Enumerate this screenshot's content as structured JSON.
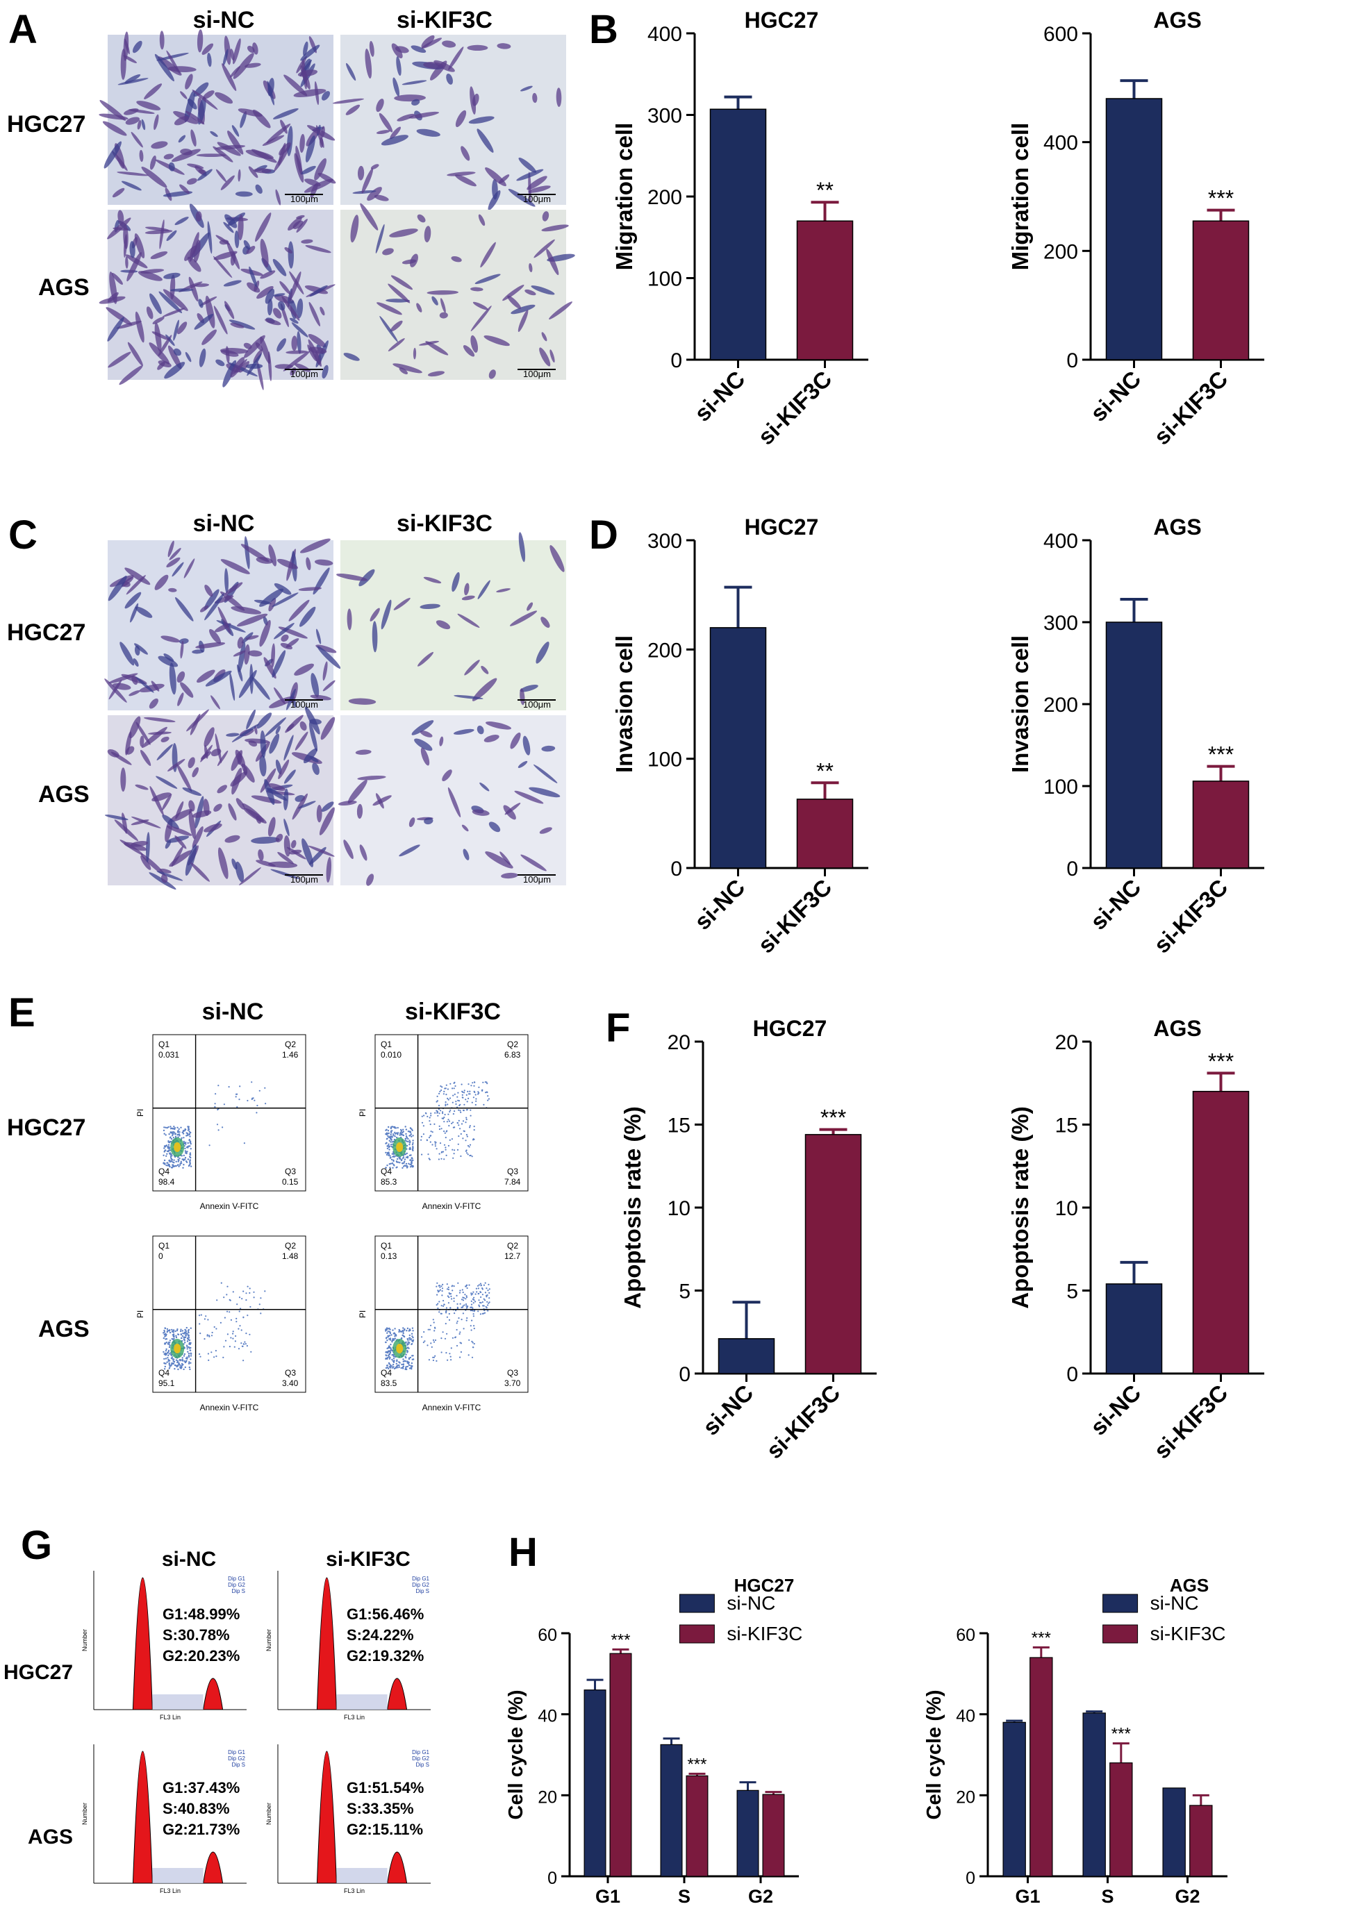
{
  "colors": {
    "si_nc": "#1d2d5e",
    "si_kif3c": "#7b1a3e",
    "axis": "#000000",
    "micro_bg_a": "#e8eaf0",
    "micro_bg_b": "#eef2ee",
    "cell_purple": "#5a3d8a",
    "flow_dot": "#5b7fc4",
    "flow_core": "#e0c020",
    "hist_red": "#e4161b"
  },
  "panel_letters": {
    "A": "A",
    "B": "B",
    "C": "C",
    "D": "D",
    "E": "E",
    "F": "F",
    "G": "G",
    "H": "H"
  },
  "micrographs": {
    "A": {
      "col_labels": [
        "si-NC",
        "si-KIF3C"
      ],
      "row_labels": [
        "HGC27",
        "AGS"
      ],
      "scale_label": "100μm"
    },
    "C": {
      "col_labels": [
        "si-NC",
        "si-KIF3C"
      ],
      "row_labels": [
        "HGC27",
        "AGS"
      ],
      "scale_label": "100μm"
    }
  },
  "flow": {
    "col_labels": [
      "si-NC",
      "si-KIF3C"
    ],
    "row_labels": [
      "HGC27",
      "AGS"
    ],
    "x_label": "Annexin V-FITC",
    "y_label": "PI",
    "plots": [
      {
        "q1": "0.031",
        "q2": "1.46",
        "q3": "0.15",
        "q4": "98.4"
      },
      {
        "q1": "0.010",
        "q2": "6.83",
        "q3": "7.84",
        "q4": "85.3"
      },
      {
        "q1": "0",
        "q2": "1.48",
        "q3": "3.40",
        "q4": "95.1"
      },
      {
        "q1": "0.13",
        "q2": "12.7",
        "q3": "3.70",
        "q4": "83.5"
      }
    ],
    "quadrant_names": [
      "Q1",
      "Q2",
      "Q3",
      "Q4"
    ]
  },
  "histograms": {
    "col_labels": [
      "si-NC",
      "si-KIF3C"
    ],
    "row_labels": [
      "HGC27",
      "AGS"
    ],
    "y_label": "Number",
    "x_label": "FL3 Lin",
    "legend": [
      "Dip G1",
      "Dip G2",
      "Dip S"
    ],
    "plots": [
      {
        "g1": "G1:48.99%",
        "s": "S:30.78%",
        "g2": "G2:20.23%"
      },
      {
        "g1": "G1:56.46%",
        "s": "S:24.22%",
        "g2": "G2:19.32%"
      },
      {
        "g1": "G1:37.43%",
        "s": "S:40.83%",
        "g2": "G2:21.73%"
      },
      {
        "g1": "G1:51.54%",
        "s": "S:33.35%",
        "g2": "G2:15.11%"
      }
    ]
  },
  "chart_data": [
    {
      "id": "B1",
      "type": "bar",
      "title": "HGC27",
      "ylabel": "Migration cell",
      "categories": [
        "si-NC",
        "si-KIF3C"
      ],
      "values": [
        307,
        170
      ],
      "errors": [
        15,
        23
      ],
      "ylim": [
        0,
        400
      ],
      "yticks": [
        0,
        100,
        200,
        300,
        400
      ],
      "annotations": [
        "",
        "**"
      ]
    },
    {
      "id": "B2",
      "type": "bar",
      "title": "AGS",
      "ylabel": "Migration cell",
      "categories": [
        "si-NC",
        "si-KIF3C"
      ],
      "values": [
        480,
        255
      ],
      "errors": [
        33,
        20
      ],
      "ylim": [
        0,
        600
      ],
      "yticks": [
        0,
        200,
        400,
        600
      ],
      "annotations": [
        "",
        "***"
      ]
    },
    {
      "id": "D1",
      "type": "bar",
      "title": "HGC27",
      "ylabel": "Invasion cell",
      "categories": [
        "si-NC",
        "si-KIF3C"
      ],
      "values": [
        220,
        63
      ],
      "errors": [
        37,
        15
      ],
      "ylim": [
        0,
        300
      ],
      "yticks": [
        0,
        100,
        200,
        300
      ],
      "annotations": [
        "",
        "**"
      ]
    },
    {
      "id": "D2",
      "type": "bar",
      "title": "AGS",
      "ylabel": "Invasion cell",
      "categories": [
        "si-NC",
        "si-KIF3C"
      ],
      "values": [
        300,
        106
      ],
      "errors": [
        28,
        18
      ],
      "ylim": [
        0,
        400
      ],
      "yticks": [
        0,
        100,
        200,
        300,
        400
      ],
      "annotations": [
        "",
        "***"
      ]
    },
    {
      "id": "F1",
      "type": "bar",
      "title": "HGC27",
      "ylabel": "Apoptosis rate (%)",
      "categories": [
        "si-NC",
        "si-KIF3C"
      ],
      "values": [
        2.1,
        14.4
      ],
      "errors": [
        2.2,
        0.3
      ],
      "ylim": [
        0,
        20
      ],
      "yticks": [
        0,
        5,
        10,
        15,
        20
      ],
      "annotations": [
        "",
        "***"
      ]
    },
    {
      "id": "F2",
      "type": "bar",
      "title": "AGS",
      "ylabel": "Apoptosis rate (%)",
      "categories": [
        "si-NC",
        "si-KIF3C"
      ],
      "values": [
        5.4,
        17.0
      ],
      "errors": [
        1.3,
        1.1
      ],
      "ylim": [
        0,
        20
      ],
      "yticks": [
        0,
        5,
        10,
        15,
        20
      ],
      "annotations": [
        "",
        "***"
      ]
    },
    {
      "id": "H1",
      "type": "bar",
      "title": "HGC27",
      "ylabel": "Cell cycle (%)",
      "categories": [
        "G1",
        "S",
        "G2"
      ],
      "series": [
        {
          "name": "si-NC",
          "values": [
            46,
            32.5,
            21.2
          ],
          "errors": [
            2.5,
            1.5,
            2
          ]
        },
        {
          "name": "si-KIF3C",
          "values": [
            55,
            24.8,
            20.2
          ],
          "errors": [
            1,
            0.5,
            0.6
          ]
        }
      ],
      "ylim": [
        0,
        60
      ],
      "yticks": [
        0,
        20,
        40,
        60
      ],
      "annotations": [
        [
          "",
          "***"
        ],
        [
          "",
          "***"
        ],
        [
          "",
          ""
        ]
      ],
      "legend": "top-right"
    },
    {
      "id": "H2",
      "type": "bar",
      "title": "AGS",
      "ylabel": "Cell cycle (%)",
      "categories": [
        "G1",
        "S",
        "G2"
      ],
      "series": [
        {
          "name": "si-NC",
          "values": [
            38,
            40.3,
            21.8
          ],
          "errors": [
            0.4,
            0.4,
            0
          ],
          "errors_note": ""
        },
        {
          "name": "si-KIF3C",
          "values": [
            54,
            28,
            17.5
          ],
          "errors": [
            2.5,
            4.8,
            2.5
          ]
        }
      ],
      "ylim": [
        0,
        60
      ],
      "yticks": [
        0,
        20,
        40,
        60
      ],
      "annotations": [
        [
          "",
          "***"
        ],
        [
          "",
          "***"
        ],
        [
          "",
          ""
        ]
      ],
      "legend": "top-right"
    }
  ]
}
